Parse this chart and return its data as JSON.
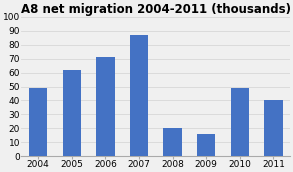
{
  "title": "A8 net migration 2004-2011 (thousands)",
  "categories": [
    "2004",
    "2005",
    "2006",
    "2007",
    "2008",
    "2009",
    "2010",
    "2011"
  ],
  "values": [
    49,
    62,
    71,
    87,
    20,
    16,
    49,
    40
  ],
  "bar_color": "#4472C4",
  "ylim": [
    0,
    100
  ],
  "yticks": [
    0,
    10,
    20,
    30,
    40,
    50,
    60,
    70,
    80,
    90,
    100
  ],
  "title_fontsize": 8.5,
  "tick_fontsize": 6.5,
  "background_color": "#f0f0f0",
  "plot_bg_color": "#f0f0f0",
  "grid_color": "#d8d8d8",
  "bar_width": 0.55
}
